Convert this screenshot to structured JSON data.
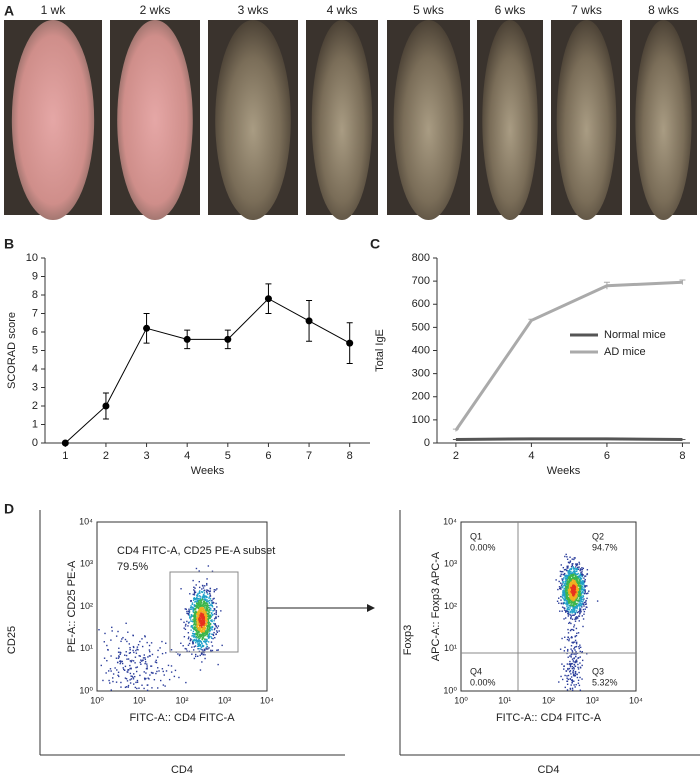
{
  "panel_labels": [
    "A",
    "B",
    "C",
    "D"
  ],
  "photos": {
    "labels": [
      "1 wk",
      "2 wks",
      "3 wks",
      "4 wks",
      "5 wks",
      "6 wks",
      "7 wks",
      "8 wks"
    ]
  },
  "chart_data": [
    {
      "type": "line",
      "xlabel": "Weeks",
      "ylabel": "SCORAD score",
      "x": [
        1,
        2,
        3,
        4,
        5,
        6,
        7,
        8
      ],
      "series": [
        {
          "color": "#000000",
          "values": [
            0,
            2,
            6.2,
            5.6,
            5.6,
            7.8,
            6.6,
            5.4
          ],
          "errors": [
            0,
            0.7,
            0.8,
            0.5,
            0.5,
            0.8,
            1.1,
            1.1
          ],
          "markers": true
        }
      ],
      "xlim": [
        0.5,
        8.5
      ],
      "xticks": [
        1,
        2,
        3,
        4,
        5,
        6,
        7,
        8
      ],
      "ylim": [
        0,
        10
      ],
      "yticks": [
        0,
        1,
        2,
        3,
        4,
        5,
        6,
        7,
        8,
        9,
        10
      ]
    },
    {
      "type": "line",
      "xlabel": "Weeks",
      "ylabel": "Total IgE",
      "x": [
        2,
        4,
        6,
        8
      ],
      "series": [
        {
          "name": "Normal mice",
          "color": "#555555",
          "values": [
            15,
            18,
            18,
            15
          ],
          "errors": [
            0,
            0,
            0,
            0
          ],
          "markers": false
        },
        {
          "name": "AD mice",
          "color": "#aaaaaa",
          "values": [
            55,
            530,
            680,
            695
          ],
          "errors": [
            5,
            5,
            15,
            10
          ],
          "markers": false
        }
      ],
      "xlim": [
        1.5,
        8.2
      ],
      "xticks": [
        2,
        4,
        6,
        8
      ],
      "ylim": [
        0,
        800
      ],
      "yticks": [
        0,
        100,
        200,
        300,
        400,
        500,
        600,
        700,
        800
      ],
      "legend": "right"
    }
  ],
  "flow": [
    {
      "outer_ylabel": "CD25",
      "ylabel": "PE-A:: CD25 PE-A",
      "xlabel": "FITC-A:: CD4 FITC-A",
      "outer_xlabel": "CD4",
      "ticks": [
        "10⁰",
        "10¹",
        "10²",
        "10³",
        "10⁴"
      ],
      "gate_label": "CD4 FITC-A, CD25 PE-A subset",
      "gate_value": "79.5%"
    },
    {
      "outer_ylabel": "Foxp3",
      "ylabel": "APC-A:: Foxp3 APC-A",
      "xlabel": "FITC-A:: CD4 FITC-A",
      "outer_xlabel": "CD4",
      "ticks": [
        "10⁰",
        "10¹",
        "10²",
        "10³",
        "10⁴"
      ],
      "quadrants": [
        {
          "name": "Q1",
          "value": "0.00%"
        },
        {
          "name": "Q2",
          "value": "94.7%"
        },
        {
          "name": "Q4",
          "value": "0.00%"
        },
        {
          "name": "Q3",
          "value": "5.32%"
        }
      ]
    }
  ]
}
